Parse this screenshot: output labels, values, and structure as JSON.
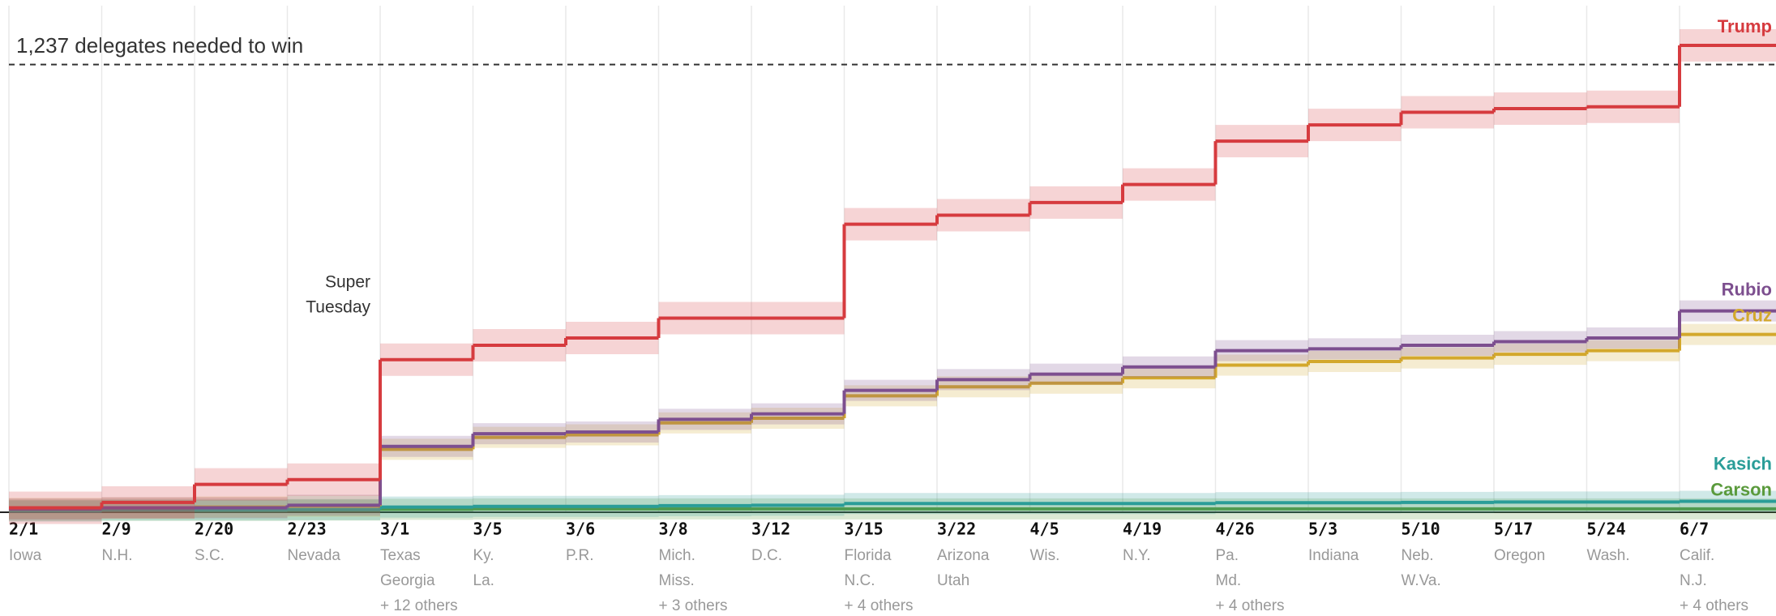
{
  "chart_data": {
    "type": "step",
    "threshold": {
      "value": 1237,
      "label": "1,237 delegates needed to win"
    },
    "annotation": [
      "Super",
      "Tuesday"
    ],
    "categories": [
      "2/1",
      "2/9",
      "2/20",
      "2/23",
      "3/1",
      "3/5",
      "3/6",
      "3/8",
      "3/12",
      "3/15",
      "3/22",
      "4/5",
      "4/19",
      "4/26",
      "5/3",
      "5/10",
      "5/17",
      "5/24",
      "6/7"
    ],
    "category_notes": [
      [
        "Iowa"
      ],
      [
        "N.H."
      ],
      [
        "S.C."
      ],
      [
        "Nevada"
      ],
      [
        "Texas",
        "Georgia",
        "+ 12 others"
      ],
      [
        "Ky.",
        "La."
      ],
      [
        "P.R."
      ],
      [
        "Mich.",
        "Miss.",
        "+ 3 others"
      ],
      [
        "D.C."
      ],
      [
        "Florida",
        "N.C.",
        "+ 4 others"
      ],
      [
        "Arizona",
        "Utah"
      ],
      [
        "Wis."
      ],
      [
        "N.Y."
      ],
      [
        "Pa.",
        "Md.",
        "+ 4 others"
      ],
      [
        "Indiana"
      ],
      [
        "Neb.",
        "W.Va."
      ],
      [
        "Oregon"
      ],
      [
        "Wash."
      ],
      [
        "Calif.",
        "N.J.",
        "+ 4 others"
      ]
    ],
    "ylim": [
      0,
      1400
    ],
    "grid": true,
    "series": [
      {
        "name": "Trump",
        "color": "#d63b3f",
        "values": [
          10,
          25,
          75,
          88,
          420,
          460,
          480,
          535,
          535,
          795,
          820,
          855,
          905,
          1025,
          1070,
          1105,
          1115,
          1120,
          1290
        ]
      },
      {
        "name": "Rubio",
        "color": "#7d4f8f",
        "values": [
          7,
          10,
          10,
          17,
          180,
          215,
          220,
          255,
          270,
          335,
          365,
          380,
          400,
          445,
          450,
          460,
          470,
          480,
          555
        ]
      },
      {
        "name": "Cruz",
        "color": "#d3a82c",
        "values": [
          8,
          10,
          12,
          15,
          172,
          205,
          212,
          245,
          258,
          320,
          345,
          355,
          370,
          405,
          415,
          425,
          435,
          445,
          490
        ]
      },
      {
        "name": "Kasich",
        "color": "#2a9d98",
        "values": [
          1,
          4,
          4,
          5,
          12,
          14,
          14,
          16,
          17,
          22,
          22,
          22,
          22,
          24,
          24,
          25,
          26,
          26,
          28
        ]
      },
      {
        "name": "Carson",
        "color": "#5a9a3c",
        "values": [
          3,
          3,
          3,
          4,
          6,
          7,
          7,
          7,
          7,
          7,
          7,
          7,
          7,
          7,
          7,
          7,
          7,
          7,
          7
        ]
      }
    ]
  }
}
